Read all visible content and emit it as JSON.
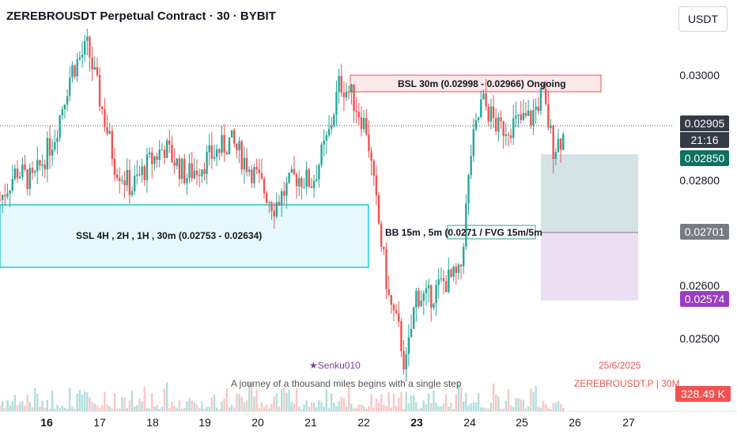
{
  "header": {
    "title": "ZEREBROUSDT Perpetual Contract · 30 · BYBIT",
    "currency": "USDT"
  },
  "axes": {
    "y_ticks": [
      "0.03000",
      "0.02800",
      "0.02600",
      "0.02500"
    ],
    "x_ticks": [
      "16",
      "17",
      "18",
      "19",
      "20",
      "21",
      "22",
      "23",
      "24",
      "25",
      "26",
      "27"
    ]
  },
  "badges": {
    "last_price": "0.02905",
    "countdown": "21:16",
    "target": "0.02850",
    "entry": "0.02701",
    "stop": "0.02574",
    "volume": "328.49 K"
  },
  "annotations": {
    "bsl": "BSL 30m (0.02998 - 0.02966) Ongoing",
    "ssl": "SSL 4H , 2H , 1H , 30m (0.02753 - 0.02634)",
    "bb": "BB 15m , 5m (0.0271 / FVG 15m/5m"
  },
  "watermark": {
    "author": "★Senku010",
    "quote": "A journey of a thousand miles begins with a single step",
    "date": "25/6/2025",
    "symbol": "ZEREBROUSDT.P | 30M"
  },
  "colors": {
    "up": "#26a69a",
    "down": "#ef5350",
    "ssl_box": "#e6f8fb",
    "bsl_box": "#fde8ea",
    "target_zone": "#d4e4e6",
    "stop_zone": "#ecdff4",
    "badge_dark": "#363a45",
    "badge_target": "#0e7160",
    "badge_entry": "#787b86",
    "badge_stop": "#9c3cc3",
    "badge_volume": "#ef5350"
  },
  "chart_data": {
    "type": "candlestick",
    "title": "ZEREBROUSDT Perpetual Contract · 30 · BYBIT",
    "timeframe": "30m",
    "ylim": [
      0.0243,
      0.0313
    ],
    "x_range": [
      "15.2",
      "27.5"
    ],
    "approx_path": [
      {
        "x": 15.2,
        "y": 0.0279
      },
      {
        "x": 15.5,
        "y": 0.0284
      },
      {
        "x": 15.8,
        "y": 0.0282
      },
      {
        "x": 16.2,
        "y": 0.029
      },
      {
        "x": 16.5,
        "y": 0.0301
      },
      {
        "x": 16.8,
        "y": 0.0305
      },
      {
        "x": 17.0,
        "y": 0.0297
      },
      {
        "x": 17.3,
        "y": 0.0285
      },
      {
        "x": 17.6,
        "y": 0.0281
      },
      {
        "x": 17.9,
        "y": 0.0285
      },
      {
        "x": 18.2,
        "y": 0.0288
      },
      {
        "x": 18.6,
        "y": 0.0283
      },
      {
        "x": 19.0,
        "y": 0.0286
      },
      {
        "x": 19.4,
        "y": 0.0289
      },
      {
        "x": 19.8,
        "y": 0.0284
      },
      {
        "x": 20.2,
        "y": 0.0278
      },
      {
        "x": 20.6,
        "y": 0.0283
      },
      {
        "x": 20.9,
        "y": 0.0282
      },
      {
        "x": 21.2,
        "y": 0.029
      },
      {
        "x": 21.4,
        "y": 0.0299
      },
      {
        "x": 21.6,
        "y": 0.0297
      },
      {
        "x": 21.9,
        "y": 0.0291
      },
      {
        "x": 22.0,
        "y": 0.0283
      },
      {
        "x": 22.3,
        "y": 0.0262
      },
      {
        "x": 22.5,
        "y": 0.0256
      },
      {
        "x": 22.6,
        "y": 0.025
      },
      {
        "x": 22.8,
        "y": 0.0263
      },
      {
        "x": 23.0,
        "y": 0.0262
      },
      {
        "x": 23.3,
        "y": 0.0265
      },
      {
        "x": 23.6,
        "y": 0.0266
      },
      {
        "x": 23.8,
        "y": 0.0287
      },
      {
        "x": 24.0,
        "y": 0.0296
      },
      {
        "x": 24.3,
        "y": 0.0291
      },
      {
        "x": 24.6,
        "y": 0.0292
      },
      {
        "x": 24.9,
        "y": 0.0293
      },
      {
        "x": 25.1,
        "y": 0.0297
      },
      {
        "x": 25.3,
        "y": 0.0288
      },
      {
        "x": 25.5,
        "y": 0.029
      }
    ],
    "zones": [
      {
        "label": "BSL 30m (0.02998 - 0.02966) Ongoing",
        "top": 0.02998,
        "bottom": 0.02966,
        "x_start": "21.7",
        "x_end": "26.5"
      },
      {
        "label": "SSL 4H , 2H , 1H , 30m (0.02753 - 0.02634)",
        "top": 0.02753,
        "bottom": 0.02634,
        "x_start": "15.2",
        "x_end": "22.0"
      }
    ],
    "position": {
      "entry": 0.02701,
      "target": 0.0285,
      "stop": 0.02574,
      "last": 0.02905
    }
  }
}
